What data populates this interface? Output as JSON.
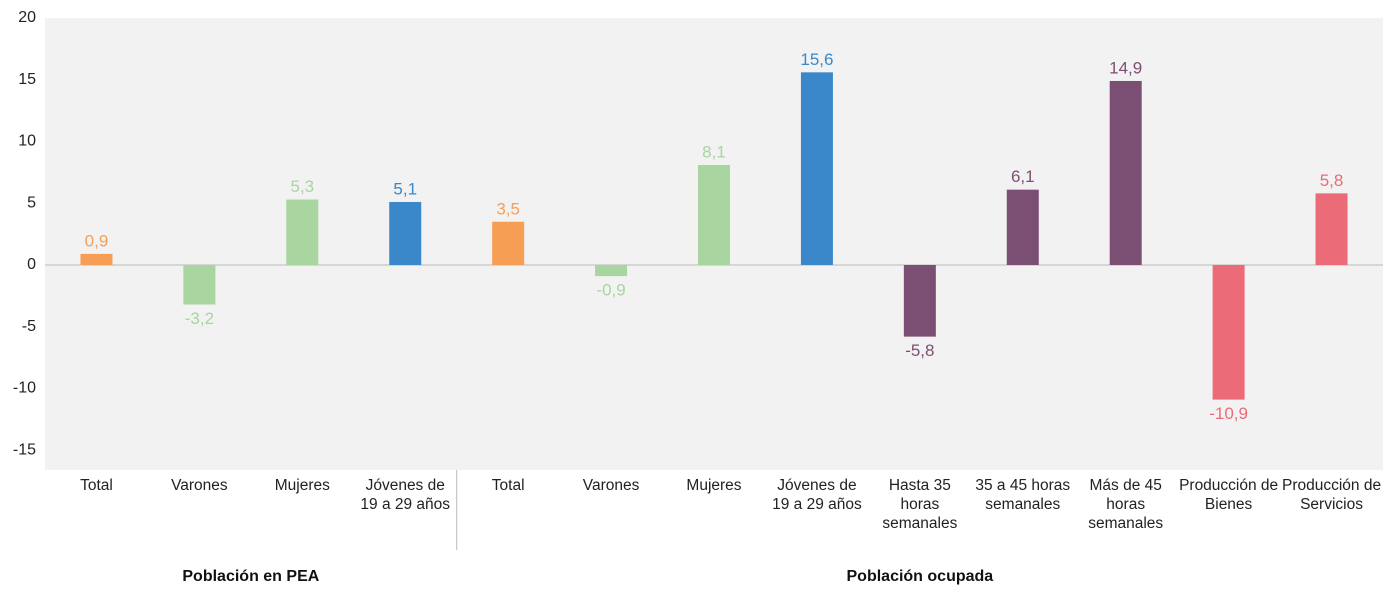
{
  "chart_data": {
    "type": "bar",
    "categories": [
      "Total",
      "Varones",
      "Mujeres",
      "Jóvenes de 19 a 29 años",
      "Total",
      "Varones",
      "Mujeres",
      "Jóvenes de 19 a 29 años",
      "Hasta 35 horas semanales",
      "35 a 45 horas semanales",
      "Más de 45 horas semanales",
      "Producción de Bienes",
      "Producción de Servicios"
    ],
    "values": [
      0.9,
      -3.2,
      5.3,
      5.1,
      3.5,
      -0.9,
      8.1,
      15.6,
      -5.8,
      6.1,
      14.9,
      -10.9,
      5.8
    ],
    "value_labels": [
      "0,9",
      "-3,2",
      "5,3",
      "5,1",
      "3,5",
      "-0,9",
      "8,1",
      "15,6",
      "-5,8",
      "6,1",
      "14,9",
      "-10,9",
      "5,8"
    ],
    "colors": [
      "#f79e55",
      "#a8d5a0",
      "#a8d5a0",
      "#3a87c9",
      "#f79e55",
      "#a8d5a0",
      "#a8d5a0",
      "#3a87c9",
      "#7b4f74",
      "#7b4f74",
      "#7b4f74",
      "#eb6b78",
      "#eb6b78"
    ],
    "groups": [
      {
        "label": "Población en PEA",
        "count": 4
      },
      {
        "label": "Población ocupada",
        "count": 9
      }
    ],
    "ylim": [
      -16.6,
      20
    ],
    "yticks": [
      -15,
      -10,
      -5,
      0,
      5,
      10,
      15,
      20
    ],
    "grid": false
  }
}
